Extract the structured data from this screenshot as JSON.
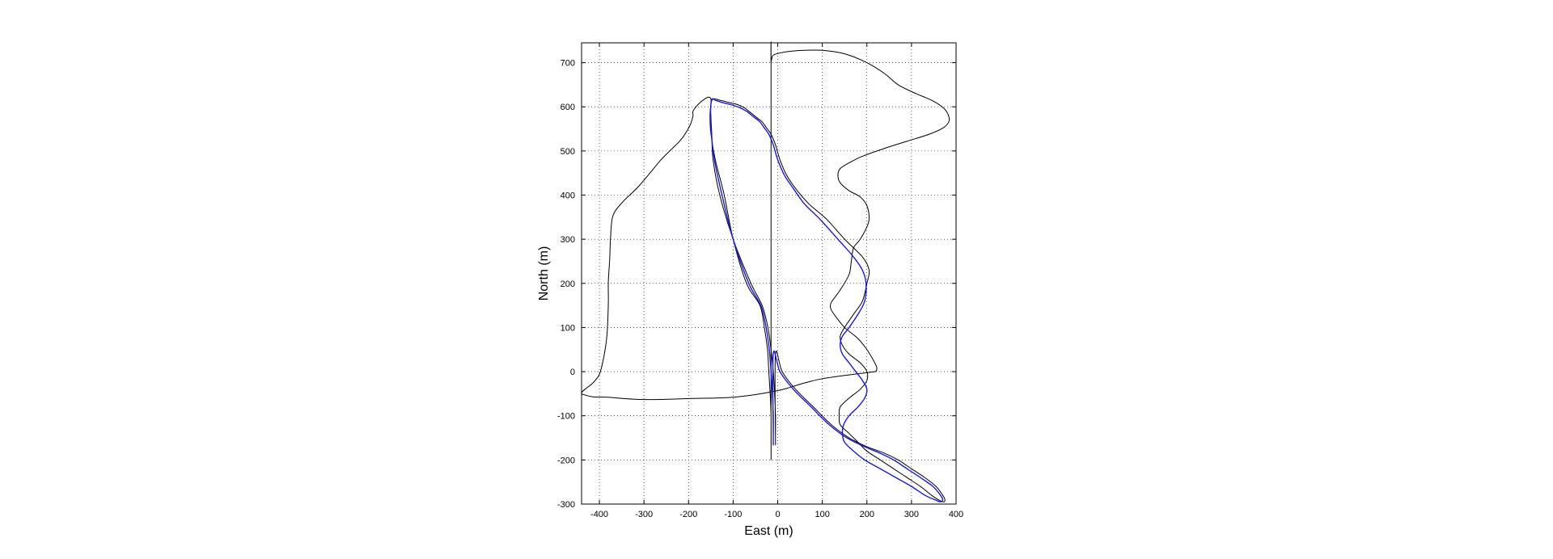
{
  "chart_data": {
    "type": "line",
    "title": "",
    "xlabel": "East (m)",
    "ylabel": "North (m)",
    "xlim": [
      -440,
      400
    ],
    "ylim": [
      -300,
      745
    ],
    "xticks": [
      -400,
      -300,
      -200,
      -100,
      0,
      100,
      200,
      300,
      400
    ],
    "yticks": [
      -300,
      -200,
      -100,
      0,
      100,
      200,
      300,
      400,
      500,
      600,
      700
    ],
    "grid": true,
    "colors": {
      "outer_boundary": "#000000",
      "inner_boundary": "#000000",
      "trajectory": "#1a1adc"
    },
    "series": [
      {
        "color": "#000000",
        "closed": true,
        "x": [
          -15,
          -15,
          -17,
          -20,
          -23,
          -30,
          -40,
          -70,
          -100,
          -120,
          -140,
          -150,
          -152,
          -150,
          -150,
          -155,
          -165,
          -180,
          -190,
          -190,
          -195,
          -205,
          -220,
          -260,
          -310,
          -350,
          -370,
          -375,
          -377,
          -380,
          -380,
          -383,
          -390,
          -400,
          -415,
          -430,
          -438,
          -440,
          -432,
          -415,
          -380,
          -345,
          -310,
          -260,
          -200,
          -150,
          -100,
          -50,
          -10,
          20,
          45,
          70,
          100,
          140,
          170,
          195,
          210,
          220,
          222,
          215,
          200,
          180,
          150,
          130,
          120,
          118,
          122,
          140,
          160,
          165,
          170,
          185,
          200,
          205,
          200,
          185,
          160,
          140,
          135,
          140,
          160,
          190,
          240,
          290,
          340,
          372,
          384,
          382,
          370,
          345,
          310,
          270,
          240,
          200,
          150,
          100,
          60,
          30,
          5,
          -8,
          -12,
          -15,
          -15
        ],
        "y": [
          -150,
          -100,
          -50,
          0,
          50,
          100,
          150,
          200,
          300,
          400,
          480,
          540,
          580,
          605,
          618,
          622,
          617,
          604,
          590,
          580,
          562,
          543,
          522,
          482,
          422,
          382,
          352,
          303,
          253,
          203,
          153,
          83,
          34,
          -6,
          -26,
          -38,
          -45,
          -50,
          -53,
          -57,
          -58,
          -61,
          -63,
          -63,
          -61,
          -60,
          -58,
          -52,
          -45,
          -38,
          -30,
          -23,
          -16,
          -10,
          -6,
          -3,
          -1,
          1,
          10,
          25,
          50,
          75,
          100,
          125,
          140,
          150,
          160,
          185,
          220,
          250,
          280,
          300,
          328,
          348,
          376,
          396,
          410,
          428,
          445,
          460,
          473,
          488,
          506,
          522,
          538,
          553,
          567,
          583,
          599,
          615,
          630,
          650,
          675,
          700,
          720,
          728,
          728,
          726,
          722,
          718,
          714,
          700,
          680
        ]
      },
      {
        "color": "#000000",
        "closed": true,
        "x": [
          -5,
          -5,
          -7,
          -10,
          -15,
          -22,
          -35,
          -60,
          -100,
          -130,
          -145,
          -148,
          -150,
          -150,
          -145,
          -130,
          -110,
          -90,
          -75,
          -65,
          -55,
          -45,
          -35,
          -25,
          -15,
          -5,
          5,
          20,
          40,
          70,
          110,
          150,
          190,
          205,
          200,
          190,
          170,
          150,
          140,
          145,
          160,
          185,
          200,
          200,
          185,
          160,
          140,
          138,
          140,
          160,
          180,
          200,
          230,
          260,
          290,
          320,
          345,
          360,
          372,
          375,
          370,
          355,
          330,
          300,
          270,
          240,
          200,
          160,
          120,
          80,
          40,
          10,
          -5,
          -5
        ],
        "y": [
          -150,
          -100,
          -50,
          0,
          50,
          100,
          150,
          200,
          300,
          400,
          480,
          540,
          580,
          605,
          618,
          615,
          610,
          605,
          598,
          590,
          582,
          574,
          566,
          552,
          538,
          514,
          480,
          445,
          415,
          380,
          345,
          300,
          260,
          230,
          200,
          160,
          130,
          100,
          80,
          60,
          40,
          20,
          0,
          -20,
          -40,
          -60,
          -80,
          -100,
          -120,
          -140,
          -160,
          -180,
          -200,
          -220,
          -240,
          -260,
          -280,
          -290,
          -295,
          -290,
          -280,
          -260,
          -240,
          -220,
          -200,
          -185,
          -170,
          -150,
          -120,
          -80,
          -40,
          0,
          40,
          -150
        ]
      },
      {
        "color": "#1a1adc",
        "closed": true,
        "x": [
          -10,
          -10,
          -12,
          -15,
          -19,
          -26,
          -38,
          -65,
          -100,
          -125,
          -142,
          -149,
          -151,
          -150,
          -147,
          -140,
          -125,
          -105,
          -85,
          -70,
          -60,
          -50,
          -40,
          -30,
          -20,
          -10,
          0,
          15,
          35,
          60,
          95,
          135,
          170,
          190,
          198,
          195,
          180,
          160,
          145,
          140,
          145,
          160,
          175,
          190,
          200,
          195,
          180,
          160,
          148,
          145,
          150,
          170,
          195,
          230,
          265,
          300,
          330,
          352,
          365,
          370,
          365,
          348,
          320,
          290,
          260,
          230,
          195,
          155,
          115,
          75,
          35,
          5,
          -10,
          -10
        ],
        "y": [
          -150,
          -100,
          -50,
          0,
          50,
          100,
          150,
          200,
          300,
          400,
          480,
          540,
          580,
          605,
          618,
          615,
          610,
          605,
          598,
          590,
          582,
          574,
          566,
          552,
          538,
          514,
          480,
          445,
          415,
          380,
          345,
          300,
          260,
          230,
          200,
          160,
          130,
          100,
          80,
          60,
          40,
          20,
          0,
          -20,
          -40,
          -60,
          -80,
          -100,
          -120,
          -140,
          -160,
          -180,
          -200,
          -220,
          -240,
          -260,
          -280,
          -290,
          -295,
          -290,
          -280,
          -260,
          -240,
          -220,
          -200,
          -185,
          -170,
          -150,
          -120,
          -80,
          -40,
          0,
          40,
          -150
        ]
      }
    ]
  }
}
